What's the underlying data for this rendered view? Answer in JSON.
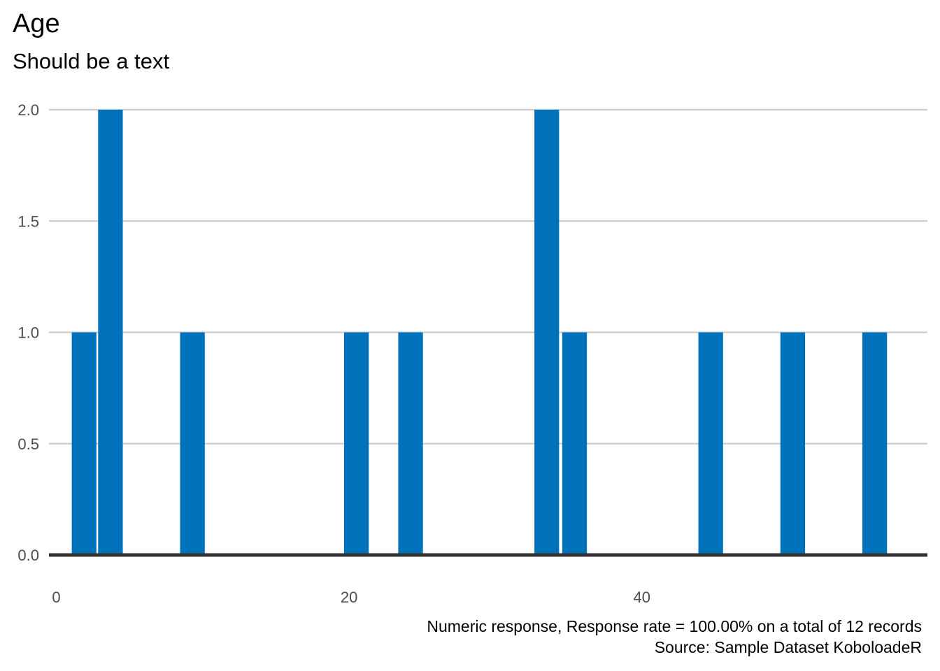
{
  "chart_data": {
    "type": "bar",
    "title": "Age",
    "subtitle": "Should be a text",
    "xlabel": "",
    "ylabel": "",
    "x_ticks": [
      0,
      20,
      40
    ],
    "x_ticks_labels": [
      "0",
      "20",
      "40"
    ],
    "xlim": [
      -0.5,
      59.5
    ],
    "y_ticks": [
      0,
      0.5,
      1,
      1.5,
      2
    ],
    "y_ticks_labels": [
      "0.0",
      "0.5",
      "1.0",
      "1.5",
      "2.0"
    ],
    "ylim": [
      0,
      2
    ],
    "bin_width": 1.8,
    "bars": [
      {
        "x": 1.9,
        "value": 1
      },
      {
        "x": 3.7,
        "value": 2
      },
      {
        "x": 9.3,
        "value": 1
      },
      {
        "x": 20.5,
        "value": 1
      },
      {
        "x": 24.2,
        "value": 1
      },
      {
        "x": 33.5,
        "value": 2
      },
      {
        "x": 35.4,
        "value": 1
      },
      {
        "x": 44.7,
        "value": 1
      },
      {
        "x": 50.3,
        "value": 1
      },
      {
        "x": 55.9,
        "value": 1
      }
    ],
    "grid": "horizontal-major",
    "legend": "none",
    "bar_color": "#0072bc",
    "grid_color": "#cccccc",
    "baseline_color": "#333333",
    "tick_color": "#4d4d4d"
  },
  "caption": {
    "line1": "Numeric response, Response rate = 100.00% on a total of 12 records",
    "line2": "Source: Sample Dataset KoboloadeR"
  }
}
